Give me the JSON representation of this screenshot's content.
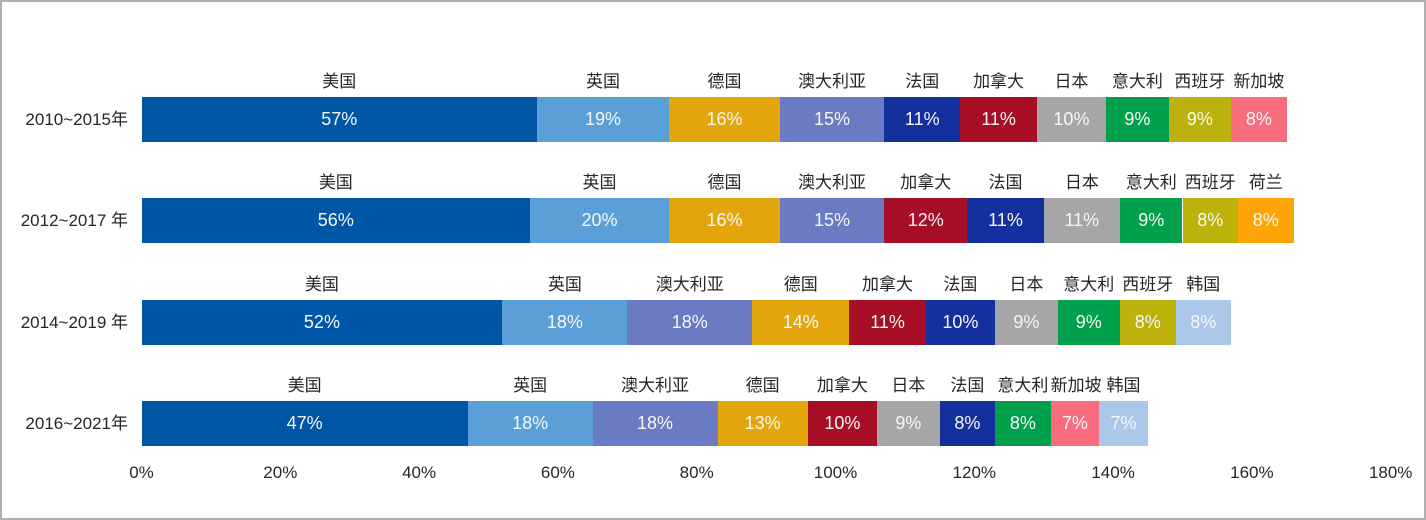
{
  "chart_data": {
    "type": "bar",
    "variant": "horizontal-stacked",
    "title": "",
    "unit": "%",
    "background_color": "#ffffff",
    "border_color": "#b0b0b0",
    "text_colors": {
      "row_label": "#262626",
      "country_label": "#262626",
      "value_label": "#f7f7f7",
      "axis_label": "#262626"
    },
    "x_axis": {
      "min": 0,
      "max": 180,
      "step": 20,
      "ticks": [
        "0%",
        "20%",
        "40%",
        "60%",
        "80%",
        "100%",
        "120%",
        "140%",
        "160%",
        "180%"
      ]
    },
    "grid": false,
    "legend": false,
    "colors": {
      "美国": "#0056A6",
      "英国": "#5B9FD8",
      "德国": "#E2A60C",
      "澳大利亚": "#6A7BC3",
      "法国": "#14309E",
      "加拿大": "#A60E25",
      "日本": "#A6A6A6",
      "意大利": "#00A04C",
      "西班牙": "#BCB20B",
      "新加坡": "#F96C7D",
      "荷兰": "#FFA406",
      "韩国": "#ABC7E9"
    },
    "rows": [
      {
        "label": "2010~2015年",
        "segments": [
          {
            "country": "美国",
            "value": 57
          },
          {
            "country": "英国",
            "value": 19
          },
          {
            "country": "德国",
            "value": 16
          },
          {
            "country": "澳大利亚",
            "value": 15
          },
          {
            "country": "法国",
            "value": 11
          },
          {
            "country": "加拿大",
            "value": 11
          },
          {
            "country": "日本",
            "value": 10
          },
          {
            "country": "意大利",
            "value": 9
          },
          {
            "country": "西班牙",
            "value": 9
          },
          {
            "country": "新加坡",
            "value": 8
          }
        ]
      },
      {
        "label": "2012~2017 年",
        "segments": [
          {
            "country": "美国",
            "value": 56
          },
          {
            "country": "英国",
            "value": 20
          },
          {
            "country": "德国",
            "value": 16
          },
          {
            "country": "澳大利亚",
            "value": 15
          },
          {
            "country": "加拿大",
            "value": 12
          },
          {
            "country": "法国",
            "value": 11
          },
          {
            "country": "日本",
            "value": 11
          },
          {
            "country": "意大利",
            "value": 9
          },
          {
            "country": "西班牙",
            "value": 8
          },
          {
            "country": "荷兰",
            "value": 8
          }
        ]
      },
      {
        "label": "2014~2019 年",
        "segments": [
          {
            "country": "美国",
            "value": 52
          },
          {
            "country": "英国",
            "value": 18
          },
          {
            "country": "澳大利亚",
            "value": 18
          },
          {
            "country": "德国",
            "value": 14
          },
          {
            "country": "加拿大",
            "value": 11
          },
          {
            "country": "法国",
            "value": 10
          },
          {
            "country": "日本",
            "value": 9
          },
          {
            "country": "意大利",
            "value": 9
          },
          {
            "country": "西班牙",
            "value": 8
          },
          {
            "country": "韩国",
            "value": 8
          }
        ]
      },
      {
        "label": "2016~2021年",
        "segments": [
          {
            "country": "美国",
            "value": 47
          },
          {
            "country": "英国",
            "value": 18
          },
          {
            "country": "澳大利亚",
            "value": 18
          },
          {
            "country": "德国",
            "value": 13
          },
          {
            "country": "加拿大",
            "value": 10
          },
          {
            "country": "日本",
            "value": 9
          },
          {
            "country": "法国",
            "value": 8
          },
          {
            "country": "意大利",
            "value": 8
          },
          {
            "country": "新加坡",
            "value": 7
          },
          {
            "country": "韩国",
            "value": 7
          }
        ]
      }
    ]
  }
}
